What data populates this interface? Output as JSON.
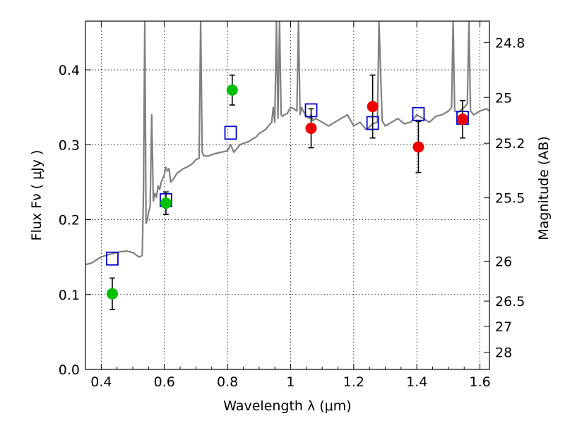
{
  "chart_data": {
    "type": "scatter",
    "xlabel": "Wavelength  λ (μm)",
    "ylabel": "Flux  Fν  ( μJy )",
    "y2label": "Magnitude (AB)",
    "xlim": [
      0.35,
      1.63
    ],
    "ylim": [
      0.0,
      0.465
    ],
    "x_ticks": [
      0.4,
      0.6,
      0.8,
      1.0,
      1.2,
      1.4,
      1.6
    ],
    "x_tick_labels": [
      "0.4",
      "0.6",
      "0.8",
      "1",
      "1.2",
      "1.4",
      "1.6"
    ],
    "y_ticks": [
      0.0,
      0.1,
      0.2,
      0.3,
      0.4
    ],
    "y_tick_labels": [
      "0.0",
      "0.1",
      "0.2",
      "0.3",
      "0.4"
    ],
    "mag_ticks": [
      24.8,
      25,
      25.2,
      25.5,
      26,
      26.5,
      27,
      28
    ],
    "mag_tick_labels": [
      "24.8",
      "25",
      "25.2",
      "25.5",
      "26",
      "26.5",
      "27",
      "28"
    ],
    "grid": true,
    "colors": {
      "model": "#808080",
      "detection_green": "#00c000",
      "detection_red": "#ee0000",
      "model_photometry": "#0000cc",
      "errorbar": "#000000"
    },
    "series": [
      {
        "type": "line",
        "x": [
          0.35,
          0.37,
          0.38,
          0.4,
          0.42,
          0.44,
          0.46,
          0.48,
          0.5,
          0.52,
          0.53,
          0.534,
          0.538,
          0.542,
          0.546,
          0.55,
          0.555,
          0.56,
          0.565,
          0.57,
          0.575,
          0.58,
          0.585,
          0.59,
          0.6,
          0.605,
          0.61,
          0.615,
          0.62,
          0.63,
          0.64,
          0.65,
          0.66,
          0.67,
          0.68,
          0.69,
          0.7,
          0.71,
          0.715,
          0.72,
          0.725,
          0.73,
          0.74,
          0.76,
          0.78,
          0.8,
          0.81,
          0.815,
          0.82,
          0.83,
          0.84,
          0.85,
          0.86,
          0.87,
          0.88,
          0.89,
          0.9,
          0.92,
          0.93,
          0.94,
          0.945,
          0.95,
          0.955,
          0.96,
          0.965,
          0.97,
          0.975,
          0.98,
          0.99,
          1.0,
          1.01,
          1.02,
          1.025,
          1.03,
          1.035,
          1.04,
          1.05,
          1.06,
          1.065,
          1.07,
          1.08,
          1.1,
          1.12,
          1.14,
          1.16,
          1.18,
          1.2,
          1.22,
          1.24,
          1.26,
          1.275,
          1.28,
          1.29,
          1.3,
          1.32,
          1.34,
          1.36,
          1.38,
          1.4,
          1.42,
          1.44,
          1.46,
          1.48,
          1.5,
          1.51,
          1.515,
          1.52,
          1.53,
          1.55,
          1.56,
          1.565,
          1.57,
          1.58,
          1.6,
          1.62,
          1.63
        ],
        "y": [
          0.14,
          0.142,
          0.145,
          0.15,
          0.153,
          0.155,
          0.157,
          0.158,
          0.156,
          0.15,
          0.152,
          0.24,
          0.465,
          0.195,
          0.2,
          0.21,
          0.218,
          0.34,
          0.225,
          0.235,
          0.23,
          0.245,
          0.24,
          0.25,
          0.26,
          0.27,
          0.265,
          0.268,
          0.25,
          0.255,
          0.262,
          0.265,
          0.268,
          0.27,
          0.272,
          0.275,
          0.28,
          0.282,
          0.465,
          0.29,
          0.285,
          0.285,
          0.285,
          0.288,
          0.29,
          0.292,
          0.3,
          0.295,
          0.29,
          0.295,
          0.3,
          0.302,
          0.303,
          0.305,
          0.308,
          0.31,
          0.315,
          0.32,
          0.325,
          0.33,
          0.35,
          0.33,
          0.465,
          0.335,
          0.465,
          0.34,
          0.338,
          0.34,
          0.342,
          0.35,
          0.348,
          0.345,
          0.465,
          0.34,
          0.35,
          0.345,
          0.338,
          0.335,
          0.34,
          0.332,
          0.335,
          0.33,
          0.325,
          0.33,
          0.335,
          0.34,
          0.325,
          0.33,
          0.32,
          0.328,
          0.33,
          0.465,
          0.332,
          0.325,
          0.33,
          0.335,
          0.328,
          0.33,
          0.34,
          0.335,
          0.33,
          0.338,
          0.34,
          0.345,
          0.35,
          0.465,
          0.345,
          0.343,
          0.35,
          0.355,
          0.465,
          0.345,
          0.34,
          0.345,
          0.348,
          0.345
        ]
      },
      {
        "type": "scatter",
        "marker": "circle",
        "color": "#00c000",
        "x": [
          0.435,
          0.605,
          0.815
        ],
        "y": [
          0.101,
          0.222,
          0.373
        ],
        "err": [
          0.021,
          0.015,
          0.02
        ]
      },
      {
        "type": "scatter",
        "marker": "circle",
        "color": "#ee0000",
        "x": [
          1.065,
          1.26,
          1.405,
          1.545
        ],
        "y": [
          0.322,
          0.351,
          0.297,
          0.334
        ],
        "err": [
          0.026,
          0.042,
          0.034,
          0.025
        ]
      },
      {
        "type": "scatter",
        "marker": "square",
        "color": "#0000cc",
        "x": [
          0.435,
          0.605,
          0.81,
          1.065,
          1.26,
          1.405,
          1.545
        ],
        "y": [
          0.148,
          0.226,
          0.316,
          0.346,
          0.329,
          0.341,
          0.336
        ]
      }
    ]
  }
}
